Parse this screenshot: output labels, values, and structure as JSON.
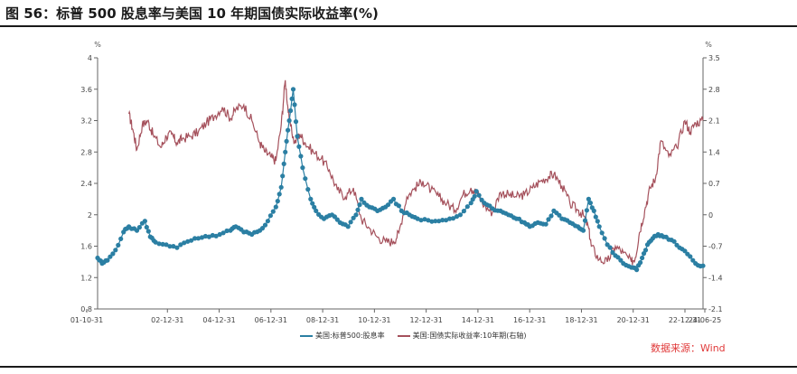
{
  "title": "图 56：标普 500 股息率与美国 10 年期国债实际收益率(%)",
  "source": "数据来源：Wind",
  "colors": {
    "series1": "#2b7fa3",
    "series2": "#a5515c",
    "axis": "#666666"
  },
  "chart_data": {
    "type": "line",
    "left_axis": {
      "unit": "%",
      "min": 0.8,
      "max": 4.0,
      "ticks": [
        "0.8",
        "1.2",
        "1.6",
        "2",
        "2.4",
        "2.8",
        "3.2",
        "3.6",
        "4"
      ]
    },
    "right_axis": {
      "unit": "%",
      "min": -2.1,
      "max": 3.5,
      "ticks": [
        "-2.1",
        "-1.4",
        "-0.7",
        "0",
        "0.7",
        "1.4",
        "2.1",
        "2.8",
        "3.5"
      ]
    },
    "x_tick_labels": [
      "01-10-31",
      "02-12-31",
      "04-12-31",
      "06-12-31",
      "08-12-31",
      "10-12-31",
      "12-12-31",
      "14-12-31",
      "16-12-31",
      "18-12-31",
      "20-12-31",
      "22-12-31",
      "24-06-25"
    ],
    "x_range": [
      2001.83,
      2024.48
    ],
    "series": [
      {
        "name": "美国:标普500:股息率",
        "axis": "left",
        "markers": true,
        "points": [
          [
            2001.83,
            1.45
          ],
          [
            2002.0,
            1.38
          ],
          [
            2002.2,
            1.42
          ],
          [
            2002.5,
            1.55
          ],
          [
            2002.8,
            1.78
          ],
          [
            2003.0,
            1.85
          ],
          [
            2003.3,
            1.8
          ],
          [
            2003.6,
            1.92
          ],
          [
            2003.8,
            1.72
          ],
          [
            2004.0,
            1.65
          ],
          [
            2004.4,
            1.62
          ],
          [
            2004.8,
            1.58
          ],
          [
            2005.2,
            1.66
          ],
          [
            2005.6,
            1.7
          ],
          [
            2006.0,
            1.72
          ],
          [
            2006.4,
            1.75
          ],
          [
            2006.8,
            1.8
          ],
          [
            2007.0,
            1.85
          ],
          [
            2007.3,
            1.78
          ],
          [
            2007.6,
            1.75
          ],
          [
            2007.9,
            1.8
          ],
          [
            2008.2,
            1.92
          ],
          [
            2008.5,
            2.1
          ],
          [
            2008.7,
            2.35
          ],
          [
            2008.85,
            2.8
          ],
          [
            2009.0,
            3.2
          ],
          [
            2009.15,
            3.6
          ],
          [
            2009.3,
            3.0
          ],
          [
            2009.5,
            2.6
          ],
          [
            2009.8,
            2.2
          ],
          [
            2010.0,
            2.05
          ],
          [
            2010.3,
            1.95
          ],
          [
            2010.6,
            2.0
          ],
          [
            2010.9,
            1.9
          ],
          [
            2011.2,
            1.85
          ],
          [
            2011.5,
            2.0
          ],
          [
            2011.7,
            2.2
          ],
          [
            2012.0,
            2.1
          ],
          [
            2012.3,
            2.05
          ],
          [
            2012.6,
            2.1
          ],
          [
            2012.9,
            2.2
          ],
          [
            2013.2,
            2.05
          ],
          [
            2013.5,
            2.0
          ],
          [
            2013.8,
            1.95
          ],
          [
            2014.2,
            1.93
          ],
          [
            2014.6,
            1.92
          ],
          [
            2015.0,
            1.95
          ],
          [
            2015.4,
            2.0
          ],
          [
            2015.8,
            2.15
          ],
          [
            2016.0,
            2.3
          ],
          [
            2016.3,
            2.15
          ],
          [
            2016.6,
            2.08
          ],
          [
            2016.9,
            2.05
          ],
          [
            2017.2,
            2.0
          ],
          [
            2017.5,
            1.95
          ],
          [
            2017.8,
            1.9
          ],
          [
            2018.0,
            1.85
          ],
          [
            2018.3,
            1.9
          ],
          [
            2018.6,
            1.88
          ],
          [
            2018.9,
            2.05
          ],
          [
            2019.2,
            1.95
          ],
          [
            2019.5,
            1.9
          ],
          [
            2019.8,
            1.85
          ],
          [
            2020.0,
            1.8
          ],
          [
            2020.2,
            2.2
          ],
          [
            2020.4,
            2.05
          ],
          [
            2020.6,
            1.85
          ],
          [
            2020.9,
            1.62
          ],
          [
            2021.2,
            1.48
          ],
          [
            2021.5,
            1.38
          ],
          [
            2021.8,
            1.33
          ],
          [
            2022.0,
            1.3
          ],
          [
            2022.2,
            1.45
          ],
          [
            2022.4,
            1.62
          ],
          [
            2022.6,
            1.7
          ],
          [
            2022.8,
            1.75
          ],
          [
            2023.0,
            1.72
          ],
          [
            2023.3,
            1.68
          ],
          [
            2023.6,
            1.58
          ],
          [
            2023.9,
            1.5
          ],
          [
            2024.2,
            1.38
          ],
          [
            2024.48,
            1.35
          ]
        ]
      },
      {
        "name": "美国:国债实际收益率:10年期(右轴)",
        "axis": "right",
        "markers": false,
        "points": [
          [
            2003.0,
            2.25
          ],
          [
            2003.15,
            1.9
          ],
          [
            2003.3,
            1.45
          ],
          [
            2003.5,
            2.0
          ],
          [
            2003.7,
            2.1
          ],
          [
            2003.9,
            1.8
          ],
          [
            2004.2,
            1.5
          ],
          [
            2004.4,
            1.75
          ],
          [
            2004.6,
            1.8
          ],
          [
            2004.8,
            1.6
          ],
          [
            2005.0,
            1.7
          ],
          [
            2005.3,
            1.75
          ],
          [
            2005.6,
            1.85
          ],
          [
            2005.9,
            2.05
          ],
          [
            2006.2,
            2.2
          ],
          [
            2006.5,
            2.4
          ],
          [
            2006.8,
            2.15
          ],
          [
            2007.0,
            2.35
          ],
          [
            2007.3,
            2.45
          ],
          [
            2007.6,
            2.1
          ],
          [
            2007.9,
            1.6
          ],
          [
            2008.1,
            1.4
          ],
          [
            2008.3,
            1.3
          ],
          [
            2008.5,
            1.2
          ],
          [
            2008.7,
            2.0
          ],
          [
            2008.85,
            3.0
          ],
          [
            2009.0,
            2.1
          ],
          [
            2009.2,
            1.6
          ],
          [
            2009.4,
            1.8
          ],
          [
            2009.6,
            1.6
          ],
          [
            2009.9,
            1.4
          ],
          [
            2010.2,
            1.25
          ],
          [
            2010.5,
            1.0
          ],
          [
            2010.8,
            0.55
          ],
          [
            2011.1,
            0.4
          ],
          [
            2011.4,
            0.6
          ],
          [
            2011.7,
            -0.1
          ],
          [
            2012.0,
            -0.3
          ],
          [
            2012.3,
            -0.5
          ],
          [
            2012.6,
            -0.6
          ],
          [
            2012.9,
            -0.6
          ],
          [
            2013.1,
            -0.4
          ],
          [
            2013.4,
            0.4
          ],
          [
            2013.7,
            0.6
          ],
          [
            2014.0,
            0.75
          ],
          [
            2014.3,
            0.55
          ],
          [
            2014.6,
            0.4
          ],
          [
            2014.9,
            0.25
          ],
          [
            2015.2,
            0.1
          ],
          [
            2015.5,
            0.45
          ],
          [
            2015.8,
            0.6
          ],
          [
            2016.0,
            0.5
          ],
          [
            2016.3,
            0.2
          ],
          [
            2016.6,
            0.05
          ],
          [
            2016.9,
            0.5
          ],
          [
            2017.2,
            0.45
          ],
          [
            2017.5,
            0.4
          ],
          [
            2017.8,
            0.45
          ],
          [
            2018.1,
            0.6
          ],
          [
            2018.4,
            0.75
          ],
          [
            2018.7,
            0.85
          ],
          [
            2018.9,
            0.9
          ],
          [
            2019.2,
            0.65
          ],
          [
            2019.5,
            0.25
          ],
          [
            2019.8,
            0.1
          ],
          [
            2020.0,
            0.0
          ],
          [
            2020.2,
            -0.3
          ],
          [
            2020.3,
            -0.7
          ],
          [
            2020.6,
            -1.0
          ],
          [
            2020.9,
            -1.05
          ],
          [
            2021.2,
            -0.7
          ],
          [
            2021.5,
            -0.85
          ],
          [
            2021.8,
            -1.05
          ],
          [
            2021.95,
            -0.95
          ],
          [
            2022.1,
            -0.4
          ],
          [
            2022.3,
            0.1
          ],
          [
            2022.5,
            0.6
          ],
          [
            2022.7,
            0.8
          ],
          [
            2022.9,
            1.65
          ],
          [
            2023.2,
            1.3
          ],
          [
            2023.5,
            1.5
          ],
          [
            2023.8,
            2.1
          ],
          [
            2024.0,
            1.85
          ],
          [
            2024.2,
            2.05
          ],
          [
            2024.48,
            2.1
          ]
        ]
      }
    ]
  }
}
